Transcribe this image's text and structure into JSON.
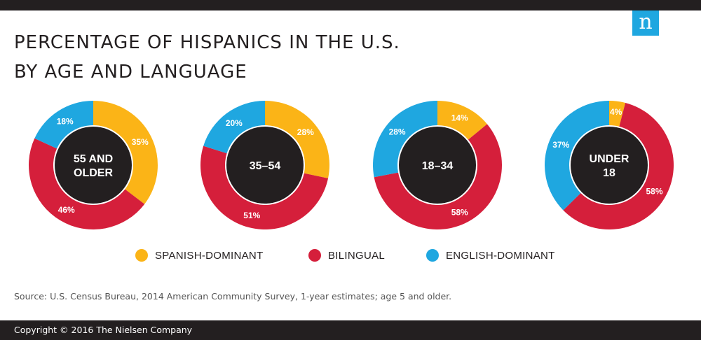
{
  "title": {
    "line1": "PERCENTAGE OF HISPANICS IN THE U.S.",
    "line2": "BY AGE AND LANGUAGE"
  },
  "logo": {
    "glyph": "n",
    "icon": "nielsen-logo",
    "color": "#1fa7e0"
  },
  "colors": {
    "spanish_dominant": "#fbb417",
    "bilingual": "#d51f3b",
    "english_dominant": "#1fa7e0",
    "center": "#231f20",
    "bar": "#231f20"
  },
  "chart_data": {
    "type": "pie",
    "categories": [
      "SPANISH-DOMINANT",
      "BILINGUAL",
      "ENGLISH-DOMINANT"
    ],
    "charts": [
      {
        "center_lines": [
          "55 AND",
          "OLDER"
        ],
        "values": [
          35,
          46,
          18
        ],
        "labels": [
          "35%",
          "46%",
          "18%"
        ]
      },
      {
        "center_lines": [
          "35–54"
        ],
        "values": [
          28,
          51,
          20
        ],
        "labels": [
          "28%",
          "51%",
          "20%"
        ]
      },
      {
        "center_lines": [
          "18–34"
        ],
        "values": [
          14,
          58,
          28
        ],
        "labels": [
          "14%",
          "58%",
          "28%"
        ]
      },
      {
        "center_lines": [
          "UNDER",
          "18"
        ],
        "values": [
          4,
          58,
          37
        ],
        "labels": [
          "4%",
          "58%",
          "37%"
        ]
      }
    ],
    "legend_position": "bottom"
  },
  "legend": {
    "items": [
      {
        "label": "SPANISH-DOMINANT"
      },
      {
        "label": "BILINGUAL"
      },
      {
        "label": "ENGLISH-DOMINANT"
      }
    ]
  },
  "source": "Source: U.S. Census Bureau, 2014 American Community Survey, 1-year estimates; age 5 and older.",
  "footer": {
    "copyright": "Copyright © 2016 The Nielsen Company"
  }
}
